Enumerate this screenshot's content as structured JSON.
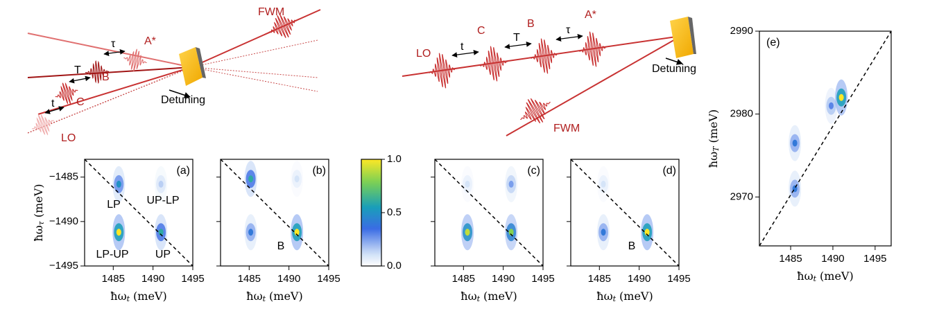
{
  "diagram": {
    "left": {
      "fwm": "FWM",
      "a_star": "A*",
      "tau": "τ",
      "t_big": "T",
      "b": "B",
      "t_small": "t",
      "c": "C",
      "lo": "LO",
      "detuning": "Detuning"
    },
    "middle": {
      "lo": "LO",
      "t_small": "t",
      "c": "C",
      "t_big": "T",
      "b": "B",
      "tau": "τ",
      "a_star": "A*",
      "detuning": "Detuning",
      "fwm": "FWM"
    }
  },
  "chart_data": [
    {
      "type": "heatmap",
      "panel_label": "(a)",
      "xlabel": {
        "main": "ħω",
        "sub": "t",
        "unit": "(meV)"
      },
      "ylabel": {
        "main": "ħω",
        "sub": "τ",
        "unit": "(meV)"
      },
      "xlim": [
        1481.4,
        1495
      ],
      "ylim": [
        -1495,
        -1483
      ],
      "xticks": [
        1485,
        1490,
        1495
      ],
      "yticks": [
        {
          "value": -1485,
          "label": "−1485"
        },
        {
          "value": -1490,
          "label": "−1490"
        },
        {
          "value": -1495,
          "label": "−1495"
        }
      ],
      "annotations": [
        "LP",
        "UP-LP",
        "LP-UP",
        "UP"
      ],
      "peaks": [
        {
          "x": 1485.7,
          "y": -1485.8,
          "value": 0.5
        },
        {
          "x": 1491,
          "y": -1485.8,
          "value": 0.15
        },
        {
          "x": 1485.7,
          "y": -1491.2,
          "value": 1.0
        },
        {
          "x": 1491,
          "y": -1491.2,
          "value": 0.6
        }
      ]
    },
    {
      "type": "heatmap",
      "panel_label": "(b)",
      "xlabel": {
        "main": "ħω",
        "sub": "t",
        "unit": "(meV)"
      },
      "xlim": [
        1481.4,
        1495
      ],
      "ylim": [
        -1495,
        -1483
      ],
      "xticks": [
        1485,
        1490,
        1495
      ],
      "yticks": [
        -1485,
        -1490,
        -1495
      ],
      "annotations": [
        "B"
      ],
      "peaks": [
        {
          "x": 1485.2,
          "y": -1485.2,
          "value": 0.6
        },
        {
          "x": 1491,
          "y": -1485.2,
          "value": 0.1
        },
        {
          "x": 1485.2,
          "y": -1491.2,
          "value": 0.4
        },
        {
          "x": 1491,
          "y": -1491.2,
          "value": 1.0
        }
      ]
    },
    {
      "type": "heatmap",
      "panel_label": "(c)",
      "xlabel": {
        "main": "ħω",
        "sub": "t",
        "unit": "(meV)"
      },
      "xlim": [
        1481.4,
        1495
      ],
      "ylim": [
        -1495,
        -1483
      ],
      "xticks": [
        1485,
        1490,
        1495
      ],
      "yticks": [
        -1485,
        -1490,
        -1495
      ],
      "annotations": [],
      "peaks": [
        {
          "x": 1485.5,
          "y": -1485.8,
          "value": 0.1
        },
        {
          "x": 1491,
          "y": -1485.8,
          "value": 0.25
        },
        {
          "x": 1485.5,
          "y": -1491.2,
          "value": 0.9
        },
        {
          "x": 1491,
          "y": -1491.2,
          "value": 0.8
        }
      ]
    },
    {
      "type": "heatmap",
      "panel_label": "(d)",
      "xlabel": {
        "main": "ħω",
        "sub": "t",
        "unit": "(meV)"
      },
      "xlim": [
        1481.4,
        1495
      ],
      "ylim": [
        -1495,
        -1483
      ],
      "xticks": [
        1485,
        1490,
        1495
      ],
      "yticks": [
        -1485,
        -1490,
        -1495
      ],
      "annotations": [
        "B"
      ],
      "peaks": [
        {
          "x": 1485.5,
          "y": -1485.8,
          "value": 0.1
        },
        {
          "x": 1485.5,
          "y": -1491.2,
          "value": 0.4
        },
        {
          "x": 1491,
          "y": -1491.2,
          "value": 1.0
        }
      ]
    },
    {
      "type": "heatmap",
      "panel_label": "(e)",
      "xlabel": {
        "main": "ħω",
        "sub": "t",
        "unit": "(meV)"
      },
      "ylabel": {
        "main": "ħω",
        "sub": "T",
        "unit": "(meV)"
      },
      "xlim": [
        1481.3,
        1496.9
      ],
      "ylim": [
        2964.1,
        2990
      ],
      "xticks": [
        1485,
        1490,
        1495
      ],
      "yticks": [
        2970,
        2980,
        2990
      ],
      "annotations": [],
      "peaks": [
        {
          "x": 1485.5,
          "y": 2971,
          "value": 0.4
        },
        {
          "x": 1485.5,
          "y": 2976.5,
          "value": 0.4
        },
        {
          "x": 1489.8,
          "y": 2981,
          "value": 0.3
        },
        {
          "x": 1491,
          "y": 2982,
          "value": 1.0
        }
      ]
    },
    {
      "type": "colorbar",
      "ylim": [
        0,
        1
      ],
      "yticks": [
        {
          "value": 0,
          "label": "0.0"
        },
        {
          "value": 0.5,
          "label": "0.5"
        },
        {
          "value": 1,
          "label": "1.0"
        }
      ]
    }
  ]
}
